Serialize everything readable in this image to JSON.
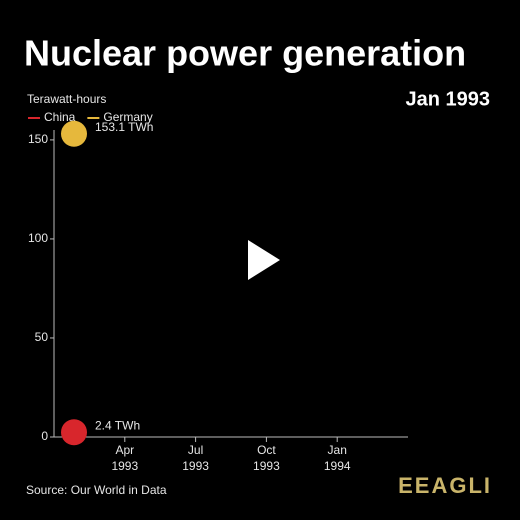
{
  "chart_data": {
    "type": "line",
    "title": "Nuclear power generation",
    "date_label": "Jan 1993",
    "y_label": "Terawatt-hours",
    "source": "Source: Our World in Data",
    "logo": "EEAGLI",
    "x": [
      "1993-01"
    ],
    "xlim": [
      "1993-01",
      "1994-04"
    ],
    "xticks": [
      {
        "value": "1993-04",
        "label": "Apr 1993"
      },
      {
        "value": "1993-07",
        "label": "Jul 1993"
      },
      {
        "value": "1993-10",
        "label": "Oct 1993"
      },
      {
        "value": "1994-01",
        "label": "Jan 1994"
      }
    ],
    "ylim": [
      0,
      155
    ],
    "yticks": [
      0,
      50,
      100,
      150
    ],
    "series": [
      {
        "name": "China",
        "color": "#d8262c",
        "values": [
          2.4
        ],
        "value_labels": [
          "2.4 TWh"
        ]
      },
      {
        "name": "Germany",
        "color": "#e6b83c",
        "values": [
          153.1
        ],
        "value_labels": [
          "153.1 TWh"
        ]
      }
    ]
  }
}
